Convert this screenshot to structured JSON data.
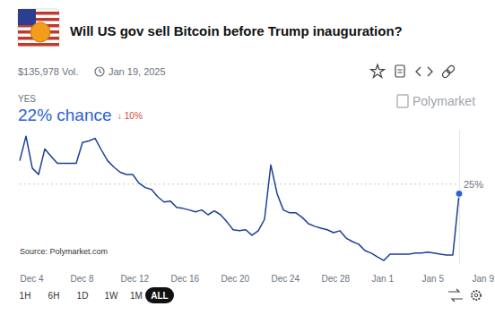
{
  "header": {
    "volume": "$135,978 Vol.",
    "date": "Jan 19, 2025",
    "outcome": "YES",
    "chance": "22% chance",
    "change": "↓ 10%",
    "brand": "Polymarket"
  },
  "chart_data": {
    "type": "line",
    "title": "Will US gov sell Bitcoin before Trump inauguration?",
    "annotations": [
      "Source: Polymarket.com"
    ],
    "categories": [
      "Dec 4",
      null,
      null,
      null,
      null,
      null,
      null,
      null,
      "Dec 8",
      null,
      null,
      null,
      null,
      null,
      null,
      null,
      "Dec 12",
      null,
      null,
      null,
      null,
      null,
      null,
      null,
      "Dec 16",
      null,
      null,
      null,
      null,
      null,
      null,
      null,
      "Dec 20",
      null,
      null,
      null,
      null,
      null,
      null,
      null,
      "Dec 24",
      null,
      null,
      null,
      null,
      null,
      null,
      null,
      "Dec 28",
      null,
      null,
      null,
      null,
      null,
      null,
      null,
      "Jan 1",
      null,
      null,
      null,
      null,
      null,
      null,
      null,
      "Jan 5",
      null,
      null,
      null,
      null,
      null,
      null,
      null,
      "Jan 9"
    ],
    "values": [
      32.3,
      40,
      30,
      28,
      36,
      33.7,
      31.5,
      31.5,
      31.5,
      31.5,
      38,
      38.5,
      39.3,
      35.7,
      32.3,
      30.3,
      28.7,
      28,
      28,
      25.3,
      23.9,
      23.3,
      21,
      19.4,
      19.7,
      17.7,
      17.4,
      16.9,
      16.3,
      16.9,
      15.4,
      16.6,
      15.4,
      13.2,
      10.7,
      10.4,
      10.7,
      9,
      10.4,
      14,
      31,
      22,
      16.9,
      16,
      16,
      14.6,
      12.6,
      11.8,
      11.2,
      10.7,
      9.8,
      10.4,
      8.1,
      7,
      6.2,
      4.2,
      3.4,
      2.2,
      1.1,
      3.1,
      3.1,
      3.1,
      3.1,
      3.4,
      3.4,
      3.7,
      3.4,
      3.1,
      2.8,
      2.8,
      22,
      null,
      null
    ],
    "color": "#1d3f94",
    "marker": "last",
    "ylim": [
      0,
      42
    ],
    "yticks": [
      {
        "value": 25,
        "label": "25%"
      }
    ],
    "grid": true
  },
  "controls": {
    "ranges": [
      "1H",
      "6H",
      "1D",
      "1W",
      "1M",
      "ALL"
    ],
    "selected": "ALL"
  }
}
